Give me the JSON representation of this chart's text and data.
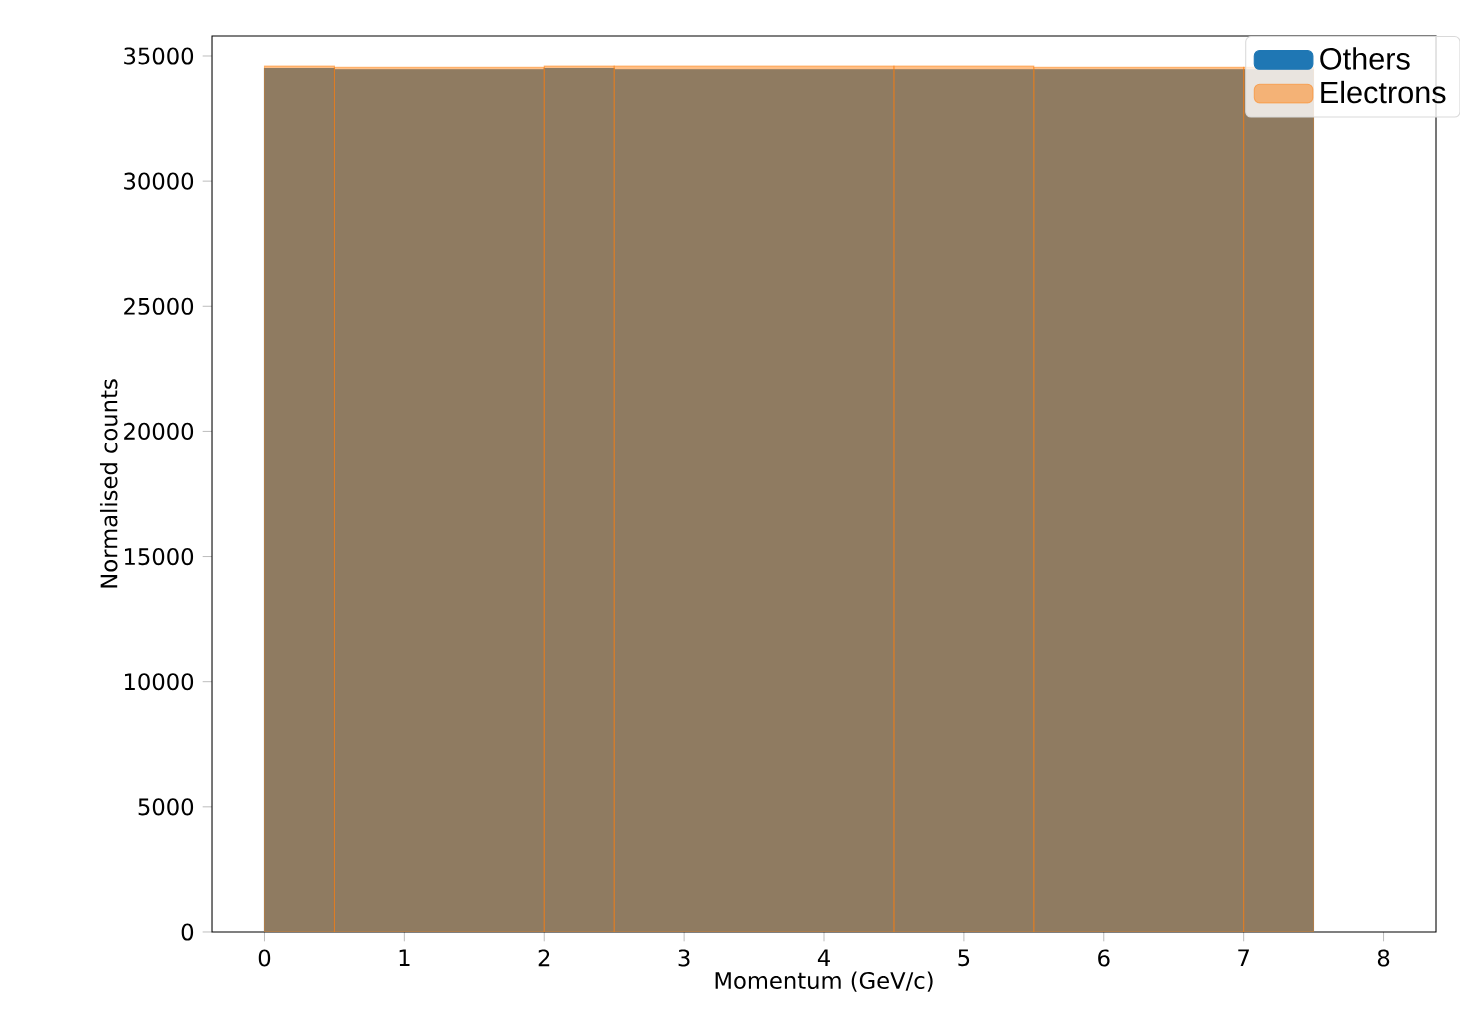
{
  "chart_data": {
    "type": "histogram",
    "xlabel": "Momentum (GeV/c)",
    "ylabel": "Normalised counts",
    "bins": [
      0,
      0.5,
      2,
      2.5,
      4.5,
      5.5,
      7,
      7.5
    ],
    "series": [
      {
        "name": "Others",
        "color": "#1f77b4",
        "values": [
          34500,
          34450,
          34500,
          34450,
          34450,
          34450,
          34450
        ]
      },
      {
        "name": "Electrons",
        "color": "#ff7f0e",
        "values": [
          34600,
          34550,
          34600,
          34600,
          34600,
          34550,
          34550
        ]
      }
    ],
    "xlim": [
      -0.375,
      8.375
    ],
    "ylim": [
      0,
      35800
    ],
    "xticks": [
      0,
      1,
      2,
      3,
      4,
      5,
      6,
      7,
      8
    ],
    "yticks": [
      0,
      5000,
      10000,
      15000,
      20000,
      25000,
      30000,
      35000
    ],
    "legend": "top right",
    "grid": false
  }
}
